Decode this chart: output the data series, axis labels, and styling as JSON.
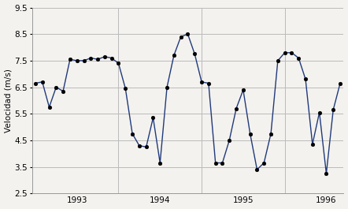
{
  "y_values": [
    6.65,
    6.7,
    5.75,
    6.5,
    6.35,
    7.55,
    7.5,
    7.5,
    7.6,
    7.55,
    7.65,
    7.6,
    7.4,
    6.45,
    4.75,
    4.3,
    4.25,
    5.35,
    3.65,
    6.5,
    7.7,
    8.4,
    8.5,
    7.75,
    6.7,
    6.65,
    3.65,
    3.65,
    4.5,
    5.7,
    6.4,
    4.75,
    3.4,
    3.65,
    4.75,
    7.5,
    7.8,
    7.8,
    7.6,
    6.8,
    4.35,
    5.55,
    3.25,
    5.65,
    6.65
  ],
  "n_points": 45,
  "x_start": 0,
  "vline_positions": [
    12,
    24,
    36
  ],
  "x_tick_positions": [
    6,
    18,
    30,
    42
  ],
  "x_tick_labels": [
    "1993",
    "1994",
    "1995",
    "1996"
  ],
  "xlim": [
    -0.5,
    44.5
  ],
  "ylim": [
    2.5,
    9.5
  ],
  "yticks": [
    2.5,
    3.5,
    4.5,
    5.5,
    6.5,
    7.5,
    8.5,
    9.5
  ],
  "ylabel": "Velocidad (m/s)",
  "line_color": "#1f3a7a",
  "marker_color": "#000000",
  "grid_color": "#bbbbbb",
  "bg_color": "#f4f2ef",
  "spine_color": "#999999",
  "tick_fontsize": 7.5,
  "ylabel_fontsize": 7.5,
  "linewidth": 1.0,
  "markersize": 3.2
}
